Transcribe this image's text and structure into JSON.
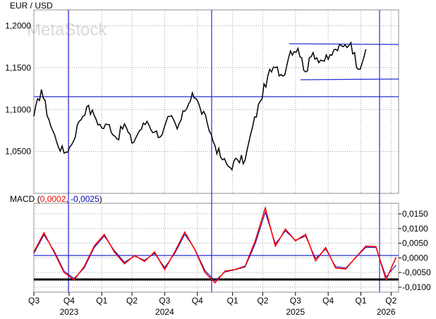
{
  "watermark": "MetaStock",
  "colors": {
    "price_line": "#000000",
    "macd_line": "#ff0000",
    "signal_line": "#0000b4",
    "trend_lines": "#2b2bd6",
    "grid": "#a0a0a0"
  },
  "chart_data": [
    {
      "type": "line",
      "title": "EUR / USD",
      "y_ticks": [
        "1,2000",
        "1,1500",
        "1,1000",
        "1,0500"
      ],
      "ylim": [
        1.0,
        1.219
      ],
      "grid": true,
      "x": [
        0,
        3,
        6,
        9,
        12,
        15,
        18,
        21,
        24,
        27,
        30,
        33,
        36,
        39,
        42,
        45,
        48,
        51,
        54,
        57,
        60,
        63,
        66,
        69,
        72,
        75,
        78,
        81,
        84,
        87,
        90,
        93,
        96,
        99,
        102,
        105,
        108,
        111,
        114,
        117,
        120,
        123,
        126,
        129,
        132
      ],
      "series": [
        {
          "values": [
            1.092,
            1.124,
            1.088,
            1.062,
            1.048,
            1.058,
            1.086,
            1.103,
            1.093,
            1.078,
            1.082,
            1.065,
            1.083,
            1.06,
            1.075,
            1.086,
            1.073,
            1.07,
            1.092,
            1.077,
            1.098,
            1.12,
            1.103,
            1.083,
            1.057,
            1.04,
            1.031,
            1.04,
            1.04,
            1.08,
            1.11,
            1.14,
            1.15,
            1.14,
            1.17,
            1.173,
            1.145,
            1.168,
            1.159,
            1.16,
            1.172,
            1.175,
            1.18,
            1.148,
            1.172
          ]
        }
      ]
    },
    {
      "type": "line",
      "title": "MACD",
      "legend_values": [
        "0,0002",
        "-0,0025"
      ],
      "y_ticks": [
        "0,0150",
        "0,0100",
        "0,0050",
        "0,0000",
        "-0,0050",
        "-0,0100"
      ],
      "ylim": [
        -0.0117,
        0.0186
      ],
      "grid": true,
      "x_ticks": [
        {
          "label": "Q3",
          "x": 0
        },
        {
          "label": "Q4",
          "x": 14
        },
        {
          "label": "Q1",
          "x": 27
        },
        {
          "label": "Q2",
          "x": 39
        },
        {
          "label": "Q3",
          "x": 52
        },
        {
          "label": "Q4",
          "x": 65
        },
        {
          "label": "Q1",
          "x": 79
        },
        {
          "label": "Q2",
          "x": 91
        },
        {
          "label": "Q3",
          "x": 104
        },
        {
          "label": "Q4",
          "x": 117
        },
        {
          "label": "Q1",
          "x": 130
        },
        {
          "label": "Q2",
          "x": 142
        }
      ],
      "year_labels": [
        {
          "label": "2023",
          "x": 14
        },
        {
          "label": "2024",
          "x": 52
        },
        {
          "label": "2025",
          "x": 104
        },
        {
          "label": "2026",
          "x": 140
        }
      ],
      "x": [
        0,
        4,
        8,
        12,
        16,
        20,
        24,
        28,
        32,
        36,
        40,
        44,
        48,
        52,
        56,
        60,
        64,
        68,
        72,
        76,
        80,
        84,
        88,
        92,
        96,
        100,
        104,
        108,
        112,
        116,
        120,
        124,
        128,
        132,
        136,
        140,
        144
      ],
      "series": [
        {
          "name": "MACD",
          "values": [
            0.002,
            0.0085,
            0.002,
            -0.005,
            -0.0075,
            -0.003,
            0.004,
            0.008,
            0.002,
            -0.002,
            0.0008,
            -0.0012,
            0.002,
            -0.004,
            0.002,
            0.0088,
            0.0028,
            -0.005,
            -0.0085,
            -0.0045,
            -0.004,
            -0.0028,
            0.0058,
            0.017,
            0.004,
            0.0098,
            0.0058,
            0.008,
            -0.001,
            0.0035,
            -0.0035,
            -0.0038,
            0.0002,
            0.004,
            0.0038,
            -0.0075,
            0.0002
          ]
        },
        {
          "name": "Signal",
          "values": [
            0.0015,
            0.0078,
            0.0025,
            -0.0045,
            -0.007,
            -0.0035,
            0.0035,
            0.0074,
            0.0025,
            -0.0015,
            0.0006,
            -0.0008,
            0.0015,
            -0.0033,
            0.0015,
            0.008,
            0.003,
            -0.0043,
            -0.0078,
            -0.0048,
            -0.0041,
            -0.0031,
            0.0048,
            0.0155,
            0.0048,
            0.0092,
            0.006,
            0.0074,
            -0.0002,
            0.003,
            -0.003,
            -0.0035,
            0.0001,
            0.0036,
            0.0035,
            -0.0065,
            -0.0025
          ]
        }
      ]
    }
  ]
}
